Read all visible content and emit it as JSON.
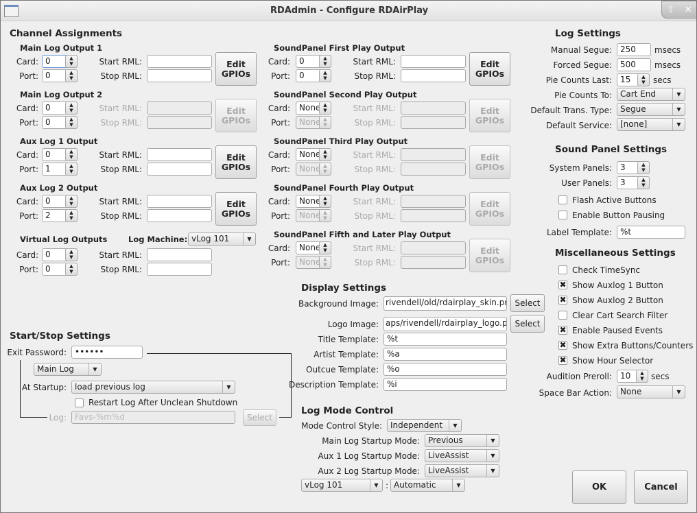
{
  "window": {
    "title": "RDAdmin - Configure RDAirPlay",
    "up_icon": "arrow-up-icon",
    "close_icon": "close-icon"
  },
  "labels": {
    "card": "Card:",
    "port": "Port:",
    "start_rml": "Start RML:",
    "stop_rml": "Stop RML:",
    "edit_gpios": "Edit\nGPIOs",
    "select": "Select",
    "up": "▲",
    "down": "▼",
    "colon": ":"
  },
  "channels": {
    "title": "Channel Assignments",
    "main1": {
      "title": "Main Log Output 1",
      "card": "0",
      "port": "0",
      "start": "",
      "stop": ""
    },
    "main2": {
      "title": "Main Log Output 2",
      "card": "0",
      "port": "0"
    },
    "aux1": {
      "title": "Aux Log 1 Output",
      "card": "0",
      "port": "1"
    },
    "aux2": {
      "title": "Aux Log 2 Output",
      "card": "0",
      "port": "2"
    },
    "virtual": {
      "title": "Virtual Log Outputs",
      "log_machine_label": "Log Machine:",
      "log_machine": "vLog 101",
      "card": "0",
      "port": "0"
    },
    "sp1": {
      "title": "SoundPanel First Play Output",
      "card": "0",
      "port": "0"
    },
    "sp2": {
      "title": "SoundPanel Second Play Output",
      "card": "None",
      "port": "None"
    },
    "sp3": {
      "title": "SoundPanel Third Play Output",
      "card": "None",
      "port": "None"
    },
    "sp4": {
      "title": "SoundPanel Fourth Play Output",
      "card": "None",
      "port": "None"
    },
    "sp5": {
      "title": "SoundPanel Fifth and Later Play Output",
      "card": "None",
      "port": "None"
    }
  },
  "log_settings": {
    "title": "Log Settings",
    "manual_segue_label": "Manual Segue:",
    "manual_segue": "250",
    "forced_segue_label": "Forced Segue:",
    "forced_segue": "500",
    "msecs": "msecs",
    "pie_last_label": "Pie Counts Last:",
    "pie_last": "15",
    "secs": "secs",
    "pie_to_label": "Pie Counts To:",
    "pie_to": "Cart End",
    "trans_label": "Default Trans. Type:",
    "trans": "Segue",
    "service_label": "Default Service:",
    "service": "[none]"
  },
  "sound_panel": {
    "title": "Sound Panel Settings",
    "system_label": "System Panels:",
    "system": "3",
    "user_label": "User Panels:",
    "user": "3",
    "flash": "Flash Active Buttons",
    "flash_checked": false,
    "pausing": "Enable Button Pausing",
    "pausing_checked": false,
    "template_label": "Label Template:",
    "template": "%t"
  },
  "misc": {
    "title": "Miscellaneous Settings",
    "checks": [
      {
        "label": "Check TimeSync",
        "checked": false
      },
      {
        "label": "Show Auxlog 1 Button",
        "checked": true
      },
      {
        "label": "Show Auxlog 2 Button",
        "checked": true
      },
      {
        "label": "Clear Cart Search Filter",
        "checked": false
      },
      {
        "label": "Enable Paused Events",
        "checked": true
      },
      {
        "label": "Show Extra Buttons/Counters",
        "checked": true
      },
      {
        "label": "Show Hour Selector",
        "checked": true
      }
    ],
    "check_mark": "✖",
    "preroll_label": "Audition Preroll:",
    "preroll": "10",
    "secs": "secs",
    "space_label": "Space Bar Action:",
    "space": "None"
  },
  "display": {
    "title": "Display Settings",
    "bg_label": "Background Image:",
    "bg": "rivendell/old/rdairplay_skin.png",
    "logo_label": "Logo Image:",
    "logo": "aps/rivendell/rdairplay_logo.png",
    "title_label": "Title Template:",
    "title_tpl": "%t",
    "artist_label": "Artist Template:",
    "artist": "%a",
    "outcue_label": "Outcue Template:",
    "outcue": "%o",
    "desc_label": "Description Template:",
    "desc": "%i"
  },
  "log_mode": {
    "title": "Log Mode Control",
    "style_label": "Mode Control Style:",
    "style": "Independent",
    "main_label": "Main Log Startup Mode:",
    "main": "Previous",
    "aux1_label": "Aux 1 Log Startup Mode:",
    "aux1": "LiveAssist",
    "aux2_label": "Aux 2 Log Startup Mode:",
    "aux2": "LiveAssist",
    "vlog": "vLog 101",
    "vlog_mode": "Automatic"
  },
  "startstop": {
    "title": "Start/Stop Settings",
    "password_label": "Exit Password:",
    "password": "••••••",
    "log_select": "Main Log",
    "startup_label": "At Startup:",
    "startup": "load previous log",
    "restart": "Restart Log After Unclean Shutdown",
    "restart_checked": false,
    "log_label": "Log:",
    "log_placeholder": "Favs-%m%d"
  },
  "buttons": {
    "ok": "OK",
    "cancel": "Cancel"
  }
}
